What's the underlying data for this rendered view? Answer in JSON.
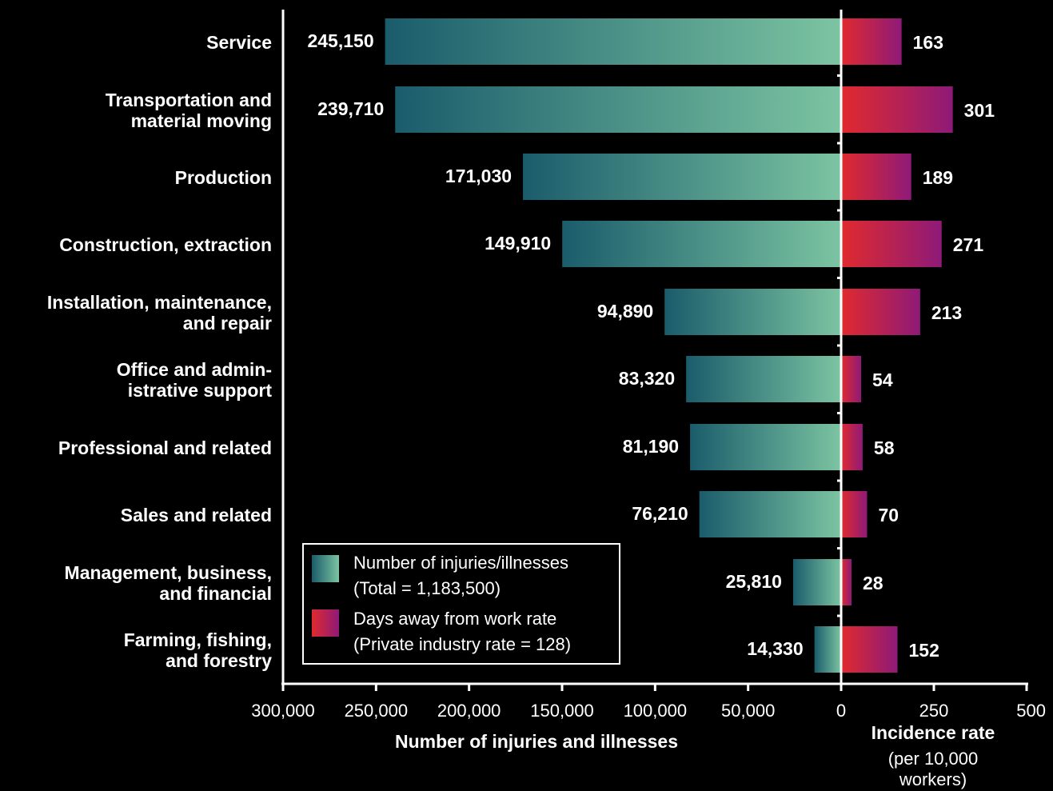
{
  "chart_data": {
    "type": "bar",
    "categories": [
      [
        "Service"
      ],
      [
        "Transportation and",
        "material moving"
      ],
      [
        "Production"
      ],
      [
        "Construction, extraction"
      ],
      [
        "Installation, maintenance,",
        "and repair"
      ],
      [
        "Office and admin-",
        "istrative support"
      ],
      [
        "Professional and related"
      ],
      [
        "Sales and related"
      ],
      [
        "Management, business,",
        "and financial"
      ],
      [
        "Farming, fishing,",
        "and forestry"
      ]
    ],
    "series": [
      {
        "name": "Number of injuries/illnesses",
        "values": [
          245150,
          239710,
          171030,
          149910,
          94890,
          83320,
          81190,
          76210,
          25810,
          14330
        ],
        "labels": [
          "245,150",
          "239,710",
          "171,030",
          "149,910",
          "94,890",
          "83,320",
          "81,190",
          "76,210",
          "25,810",
          "14,330"
        ]
      },
      {
        "name": "Days away from work rate",
        "values": [
          163,
          301,
          189,
          271,
          213,
          54,
          58,
          70,
          28,
          152
        ],
        "labels": [
          "163",
          "301",
          "189",
          "271",
          "213",
          "54",
          "58",
          "70",
          "28",
          "152"
        ]
      }
    ],
    "left_axis": {
      "title": "Number of injuries and illnesses",
      "range": [
        0,
        300000
      ],
      "ticks": [
        300000,
        250000,
        200000,
        150000,
        100000,
        50000,
        0
      ],
      "tick_labels": [
        "300,000",
        "250,000",
        "200,000",
        "150,000",
        "100,000",
        "50,000",
        "0"
      ]
    },
    "right_axis": {
      "title": "Incidence rate",
      "subtitle": [
        "(per 10,000",
        "workers)"
      ],
      "range": [
        0,
        500
      ],
      "ticks": [
        250,
        500
      ],
      "tick_labels": [
        "250",
        "500"
      ]
    },
    "legend": {
      "placement": "bottom-left",
      "entries": [
        {
          "lines": [
            "Number of injuries/illnesses",
            "(Total = 1,183,500)"
          ]
        },
        {
          "lines": [
            "Days away from work rate",
            "(Private industry rate = 128)"
          ]
        }
      ]
    },
    "colors": {
      "background": "#000000",
      "count_gradient_dark": "#1a5c6b",
      "count_gradient_light": "#7cc4a2",
      "rate_gradient_red": "#e02a2e",
      "rate_gradient_purple": "#8e1a78",
      "axis": "#ffffff"
    }
  }
}
